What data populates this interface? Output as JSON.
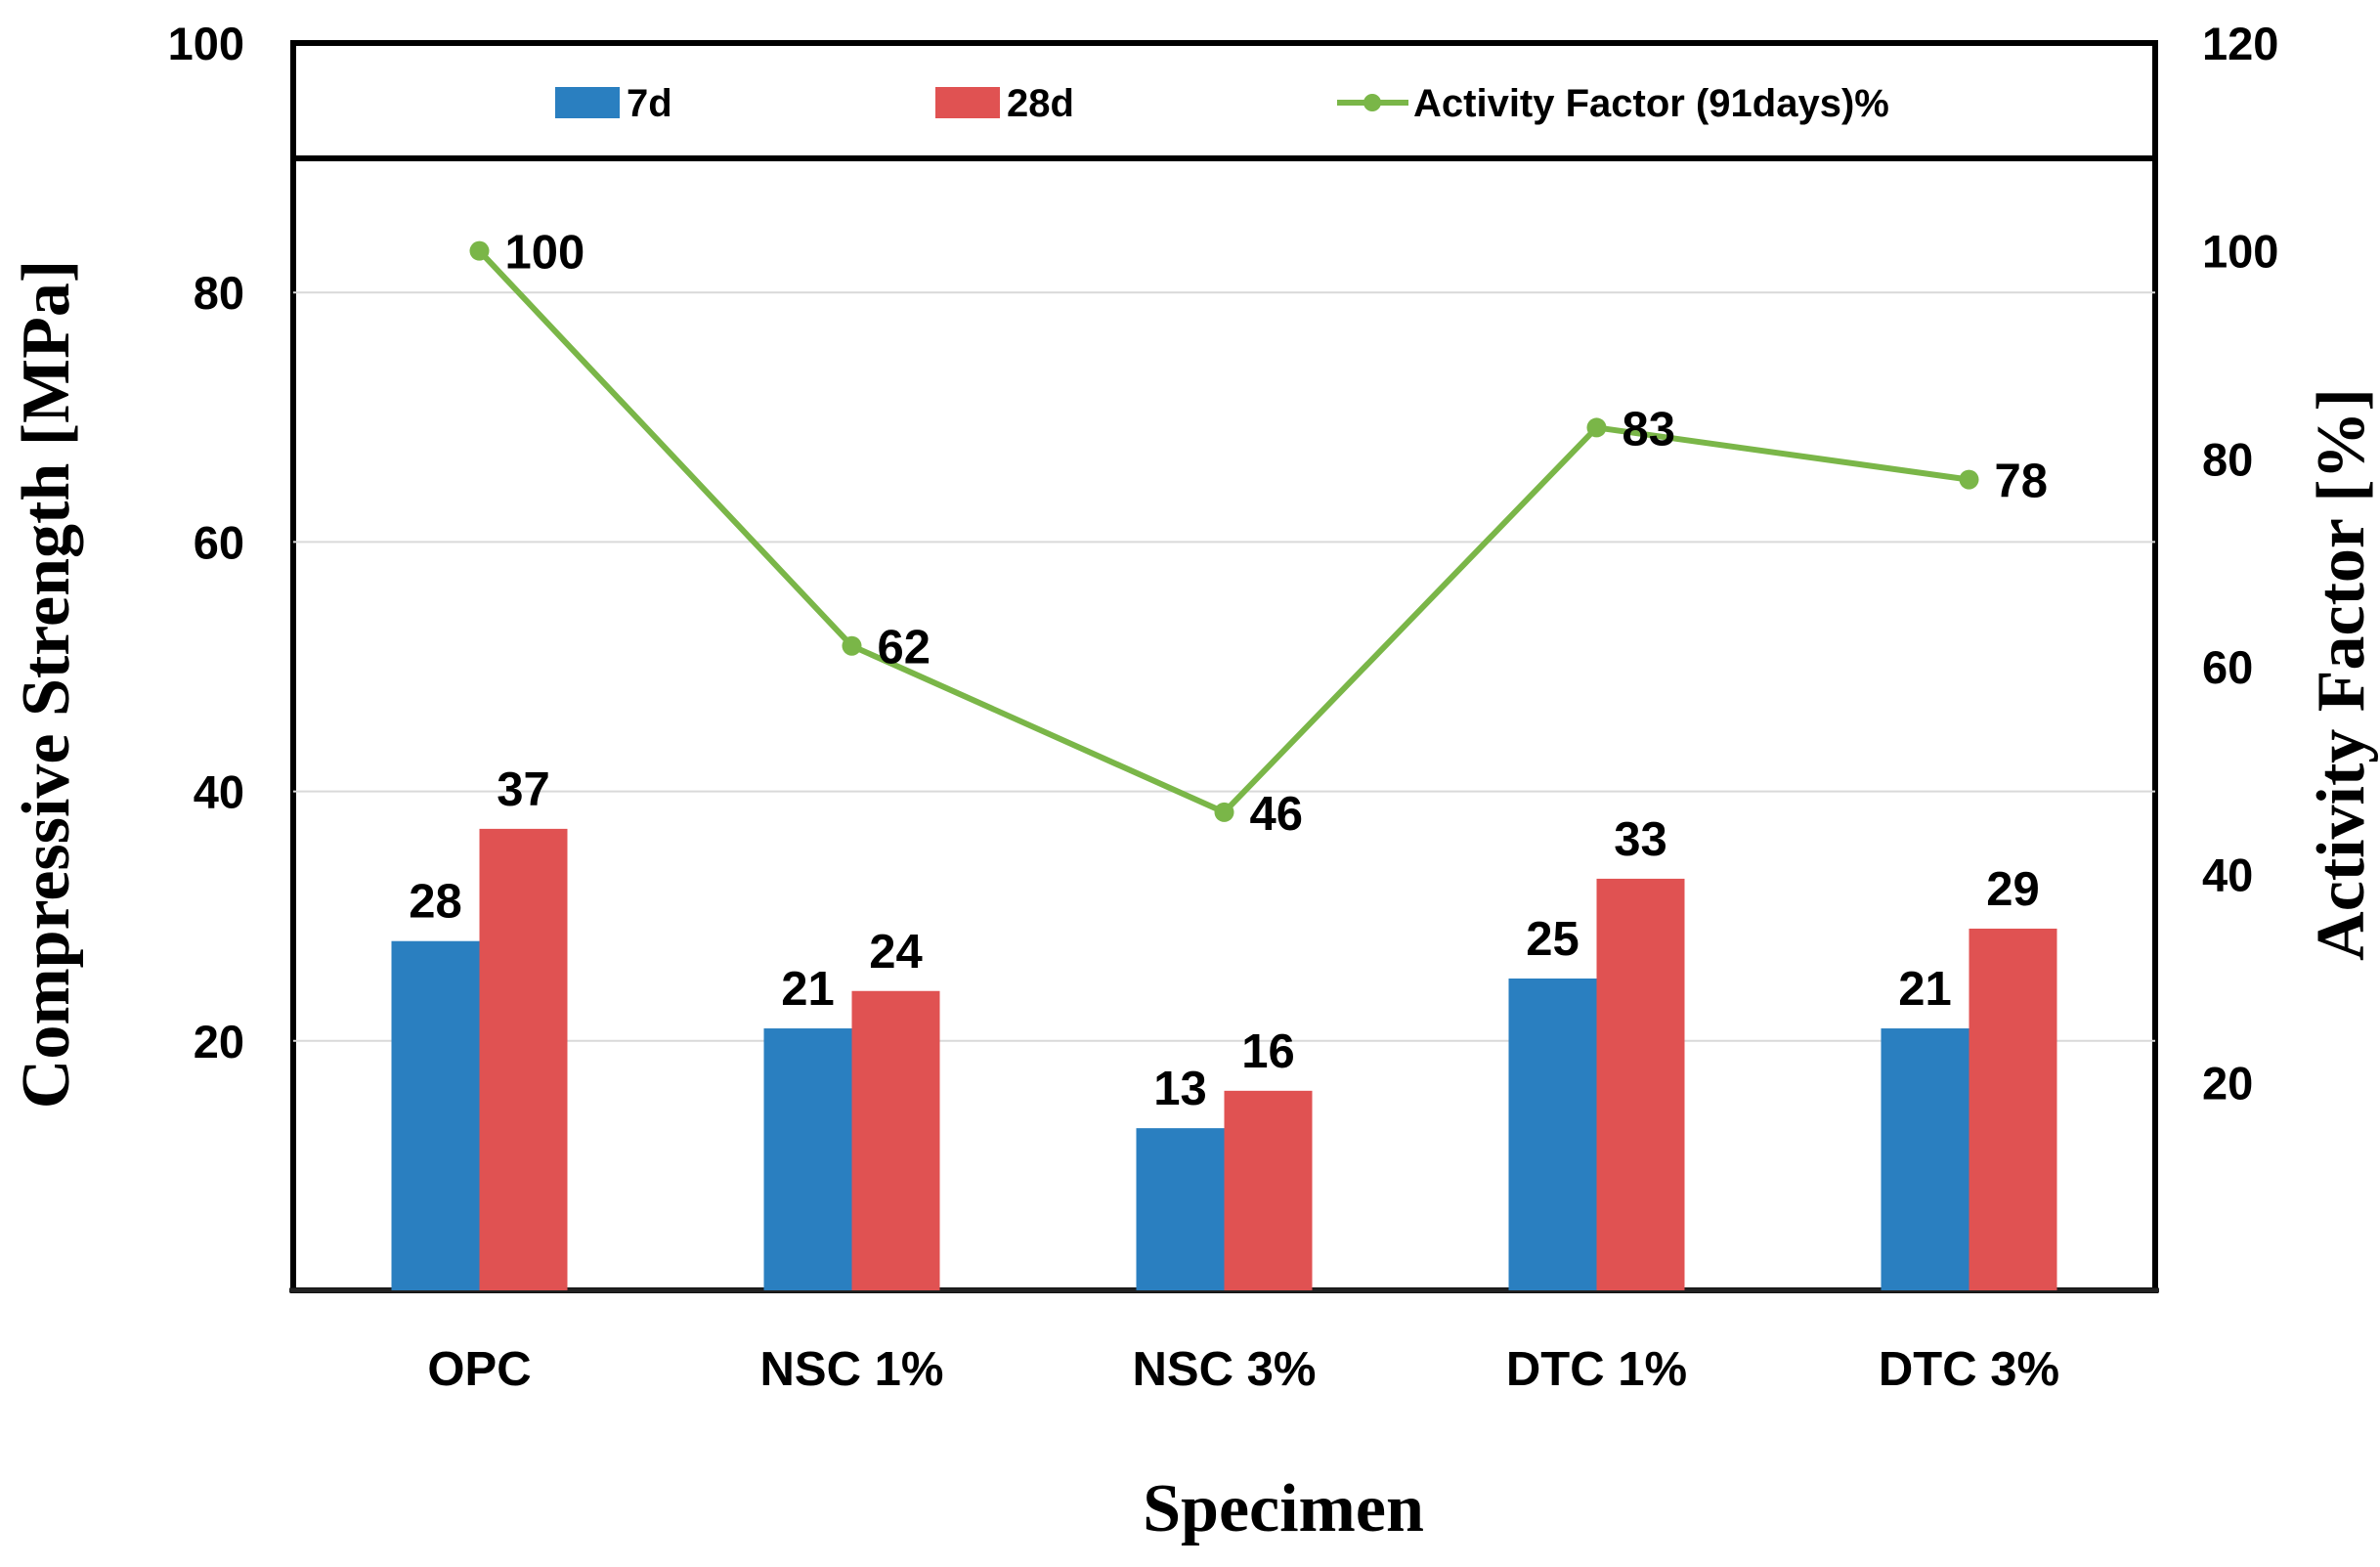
{
  "chart_data": {
    "type": "bar",
    "categories": [
      "OPC",
      "NSC 1%",
      "NSC 3%",
      "DTC 1%",
      "DTC 3%"
    ],
    "series": [
      {
        "name": "7d",
        "axis": "left",
        "kind": "bar",
        "color": "#2a7fc0",
        "values": [
          28,
          21,
          13,
          25,
          21
        ]
      },
      {
        "name": "28d",
        "axis": "left",
        "kind": "bar",
        "color": "#e05252",
        "values": [
          37,
          24,
          16,
          33,
          29
        ]
      },
      {
        "name": "Activity Factor (91days)%",
        "axis": "right",
        "kind": "line",
        "color": "#7ab648",
        "values": [
          100,
          62,
          46,
          83,
          78
        ]
      }
    ],
    "xlabel": "Specimen",
    "ylabel": "Compressive Strength [MPa]",
    "y2label": "Activity Factor  [%]",
    "ylim": [
      0,
      100
    ],
    "y2lim": [
      0,
      120
    ],
    "yticks": [
      "20",
      "40",
      "60",
      "80",
      "100"
    ],
    "y2ticks": [
      "20",
      "40",
      "60",
      "80",
      "100",
      "120"
    ],
    "grid": true,
    "legend": "top"
  }
}
